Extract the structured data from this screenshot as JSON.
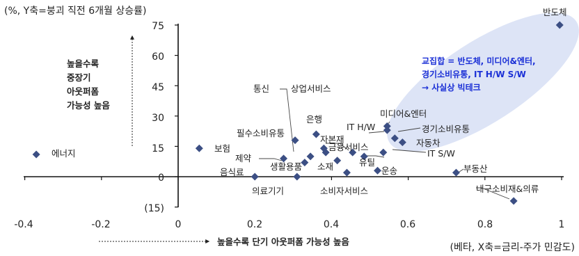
{
  "chart_data": {
    "type": "scatter",
    "title": "",
    "ylabel_top": "(%, Y축=붕괴 직전 6개월 상승률)",
    "xlabel_bottom": "(베타, X축=금리-주가 민감도)",
    "x_ticks": [
      "-0.4",
      "-0.2",
      "0",
      "0.2",
      "0.4",
      "0.6",
      "0.8",
      "1"
    ],
    "y_ticks": [
      "75",
      "60",
      "45",
      "30",
      "15",
      "0",
      "(15)"
    ],
    "xlim": [
      -0.4,
      1.0
    ],
    "ylim": [
      -15,
      75
    ],
    "y_arrow_label": [
      "높을수록",
      "중장기",
      "아웃퍼폼",
      "가능성 높음"
    ],
    "x_arrow_label": "높을수록 단기 아웃퍼폼 가능성 높음",
    "highlight_label": [
      "교집합 = 반도체, 미디어&엔터,",
      "경기소비유통,  IT H/W S/W",
      "→ 사실상 빅테크"
    ],
    "highlight_color": "#1a2fd6",
    "ellipse_color": "#dde4f6",
    "marker_color": "#3c4f84",
    "points": [
      {
        "label": "반도체",
        "x": 0.995,
        "y": 75
      },
      {
        "label": "에너지",
        "x": -0.37,
        "y": 11
      },
      {
        "label": "보험",
        "x": 0.055,
        "y": 14
      },
      {
        "label": "필수소비유통",
        "x": 0.305,
        "y": 18
      },
      {
        "label": "제약",
        "x": 0.275,
        "y": 9
      },
      {
        "label": "음식료",
        "x": 0.2,
        "y": 0
      },
      {
        "label": "생활용품",
        "x": 0.33,
        "y": 7
      },
      {
        "label": "의료기기",
        "x": 0.31,
        "y": 0
      },
      {
        "label": "통신",
        "x": 0.345,
        "y": 10
      },
      {
        "label": "상업서비스",
        "x": 0.385,
        "y": 12
      },
      {
        "label": "은행",
        "x": 0.36,
        "y": 21
      },
      {
        "label": "자본재",
        "x": 0.38,
        "y": 14
      },
      {
        "label": "소재",
        "x": 0.415,
        "y": 8
      },
      {
        "label": "소비자서비스",
        "x": 0.44,
        "y": 2
      },
      {
        "label": "금융서비스",
        "x": 0.455,
        "y": 12
      },
      {
        "label": "유틸",
        "x": 0.485,
        "y": 10
      },
      {
        "label": "운송",
        "x": 0.52,
        "y": 3
      },
      {
        "label": "IT H/W",
        "x": 0.545,
        "y": 23
      },
      {
        "label": "미디어&엔터",
        "x": 0.545,
        "y": 25
      },
      {
        "label": "경기소비유통",
        "x": 0.565,
        "y": 19
      },
      {
        "label": "자동차",
        "x": 0.585,
        "y": 17
      },
      {
        "label": "IT S/W",
        "x": 0.535,
        "y": 12
      },
      {
        "label": "부동산",
        "x": 0.725,
        "y": 2
      },
      {
        "label": "내구소비재&의류",
        "x": 0.875,
        "y": -12
      }
    ]
  }
}
